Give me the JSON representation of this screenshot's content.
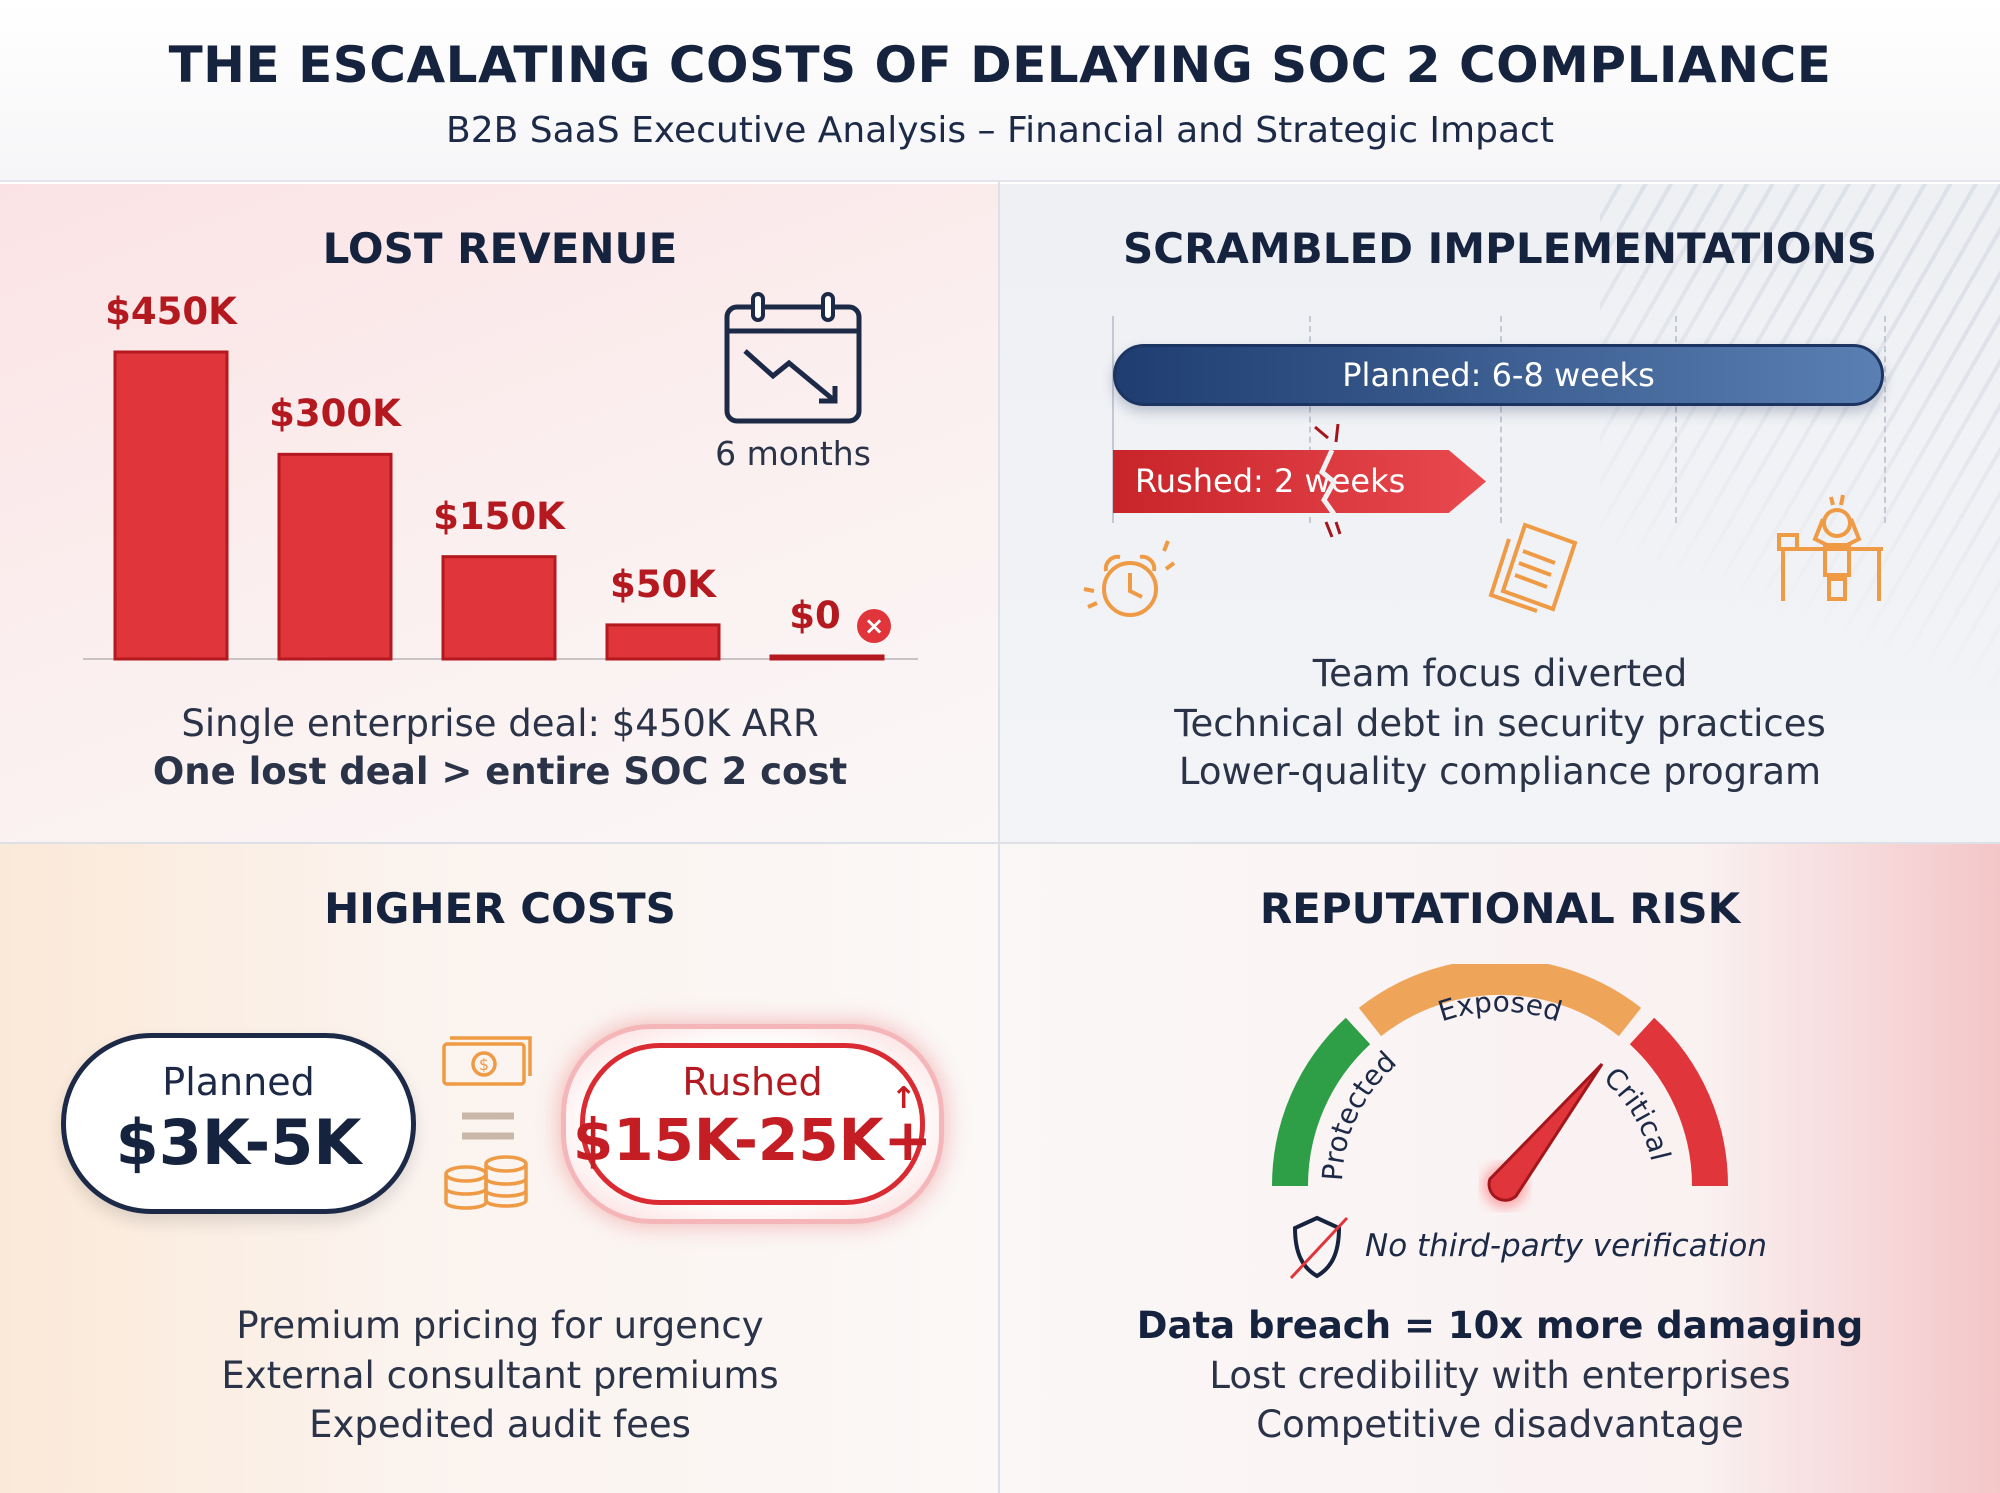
{
  "header": {
    "title": "THE ESCALATING COSTS OF DELAYING SOC 2 COMPLIANCE",
    "subtitle": "B2B SaaS Executive Analysis – Financial and Strategic Impact"
  },
  "lost_revenue": {
    "title": "LOST REVENUE",
    "period_label": "6 months",
    "period_icon": "calendar-trend-down-icon",
    "zero_icon": "x-circle-icon",
    "lines": [
      "Single enterprise deal: $450K ARR",
      "One lost deal > entire SOC 2 cost"
    ]
  },
  "chart_data": {
    "type": "bar",
    "categories": [
      "1",
      "2",
      "3",
      "4",
      "5"
    ],
    "values": [
      450,
      300,
      150,
      50,
      0
    ],
    "data_labels": [
      "$450K",
      "$300K",
      "$150K",
      "$50K",
      "$0"
    ],
    "ylabel": "",
    "xlabel": "",
    "ylim": [
      0,
      450
    ],
    "grid": false,
    "bar_color": "#e0353b"
  },
  "scrambled": {
    "title": "SCRAMBLED IMPLEMENTATIONS",
    "planned_label": "Planned: 6-8 weeks",
    "rushed_label": "Rushed: 2 weeks",
    "icons": [
      "alarm-clock-icon",
      "documents-icon",
      "stressed-person-at-desk-icon"
    ],
    "lines": [
      "Team focus diverted",
      "Technical debt in security practices",
      "Lower-quality compliance program"
    ]
  },
  "higher_costs": {
    "title": "HIGHER COSTS",
    "planned": {
      "label": "Planned",
      "value": "$3K-5K"
    },
    "rushed": {
      "label": "Rushed",
      "value": "$15K-25K+"
    },
    "icons": [
      "cash-icon",
      "equals-icon",
      "coins-icon",
      "arrow-up-icon"
    ],
    "lines": [
      "Premium pricing for urgency",
      "External consultant premiums",
      "Expedited audit fees"
    ]
  },
  "reputational": {
    "title": "REPUTATIONAL RISK",
    "gauge": {
      "zones": [
        "Protected",
        "Exposed",
        "Critical"
      ],
      "zone_colors": [
        "#2e9e47",
        "#eea55a",
        "#e0353b"
      ],
      "needle_zone": "Critical"
    },
    "verification": "No third-party verification",
    "lines": [
      "Data breach = 10x more damaging",
      "Lost credibility with enterprises",
      "Competitive disadvantage"
    ]
  },
  "colors": {
    "navy": "#16233f",
    "red": "#e0353b",
    "blue_bar": "#2c4f86",
    "orange_icon": "#ef9a45"
  }
}
